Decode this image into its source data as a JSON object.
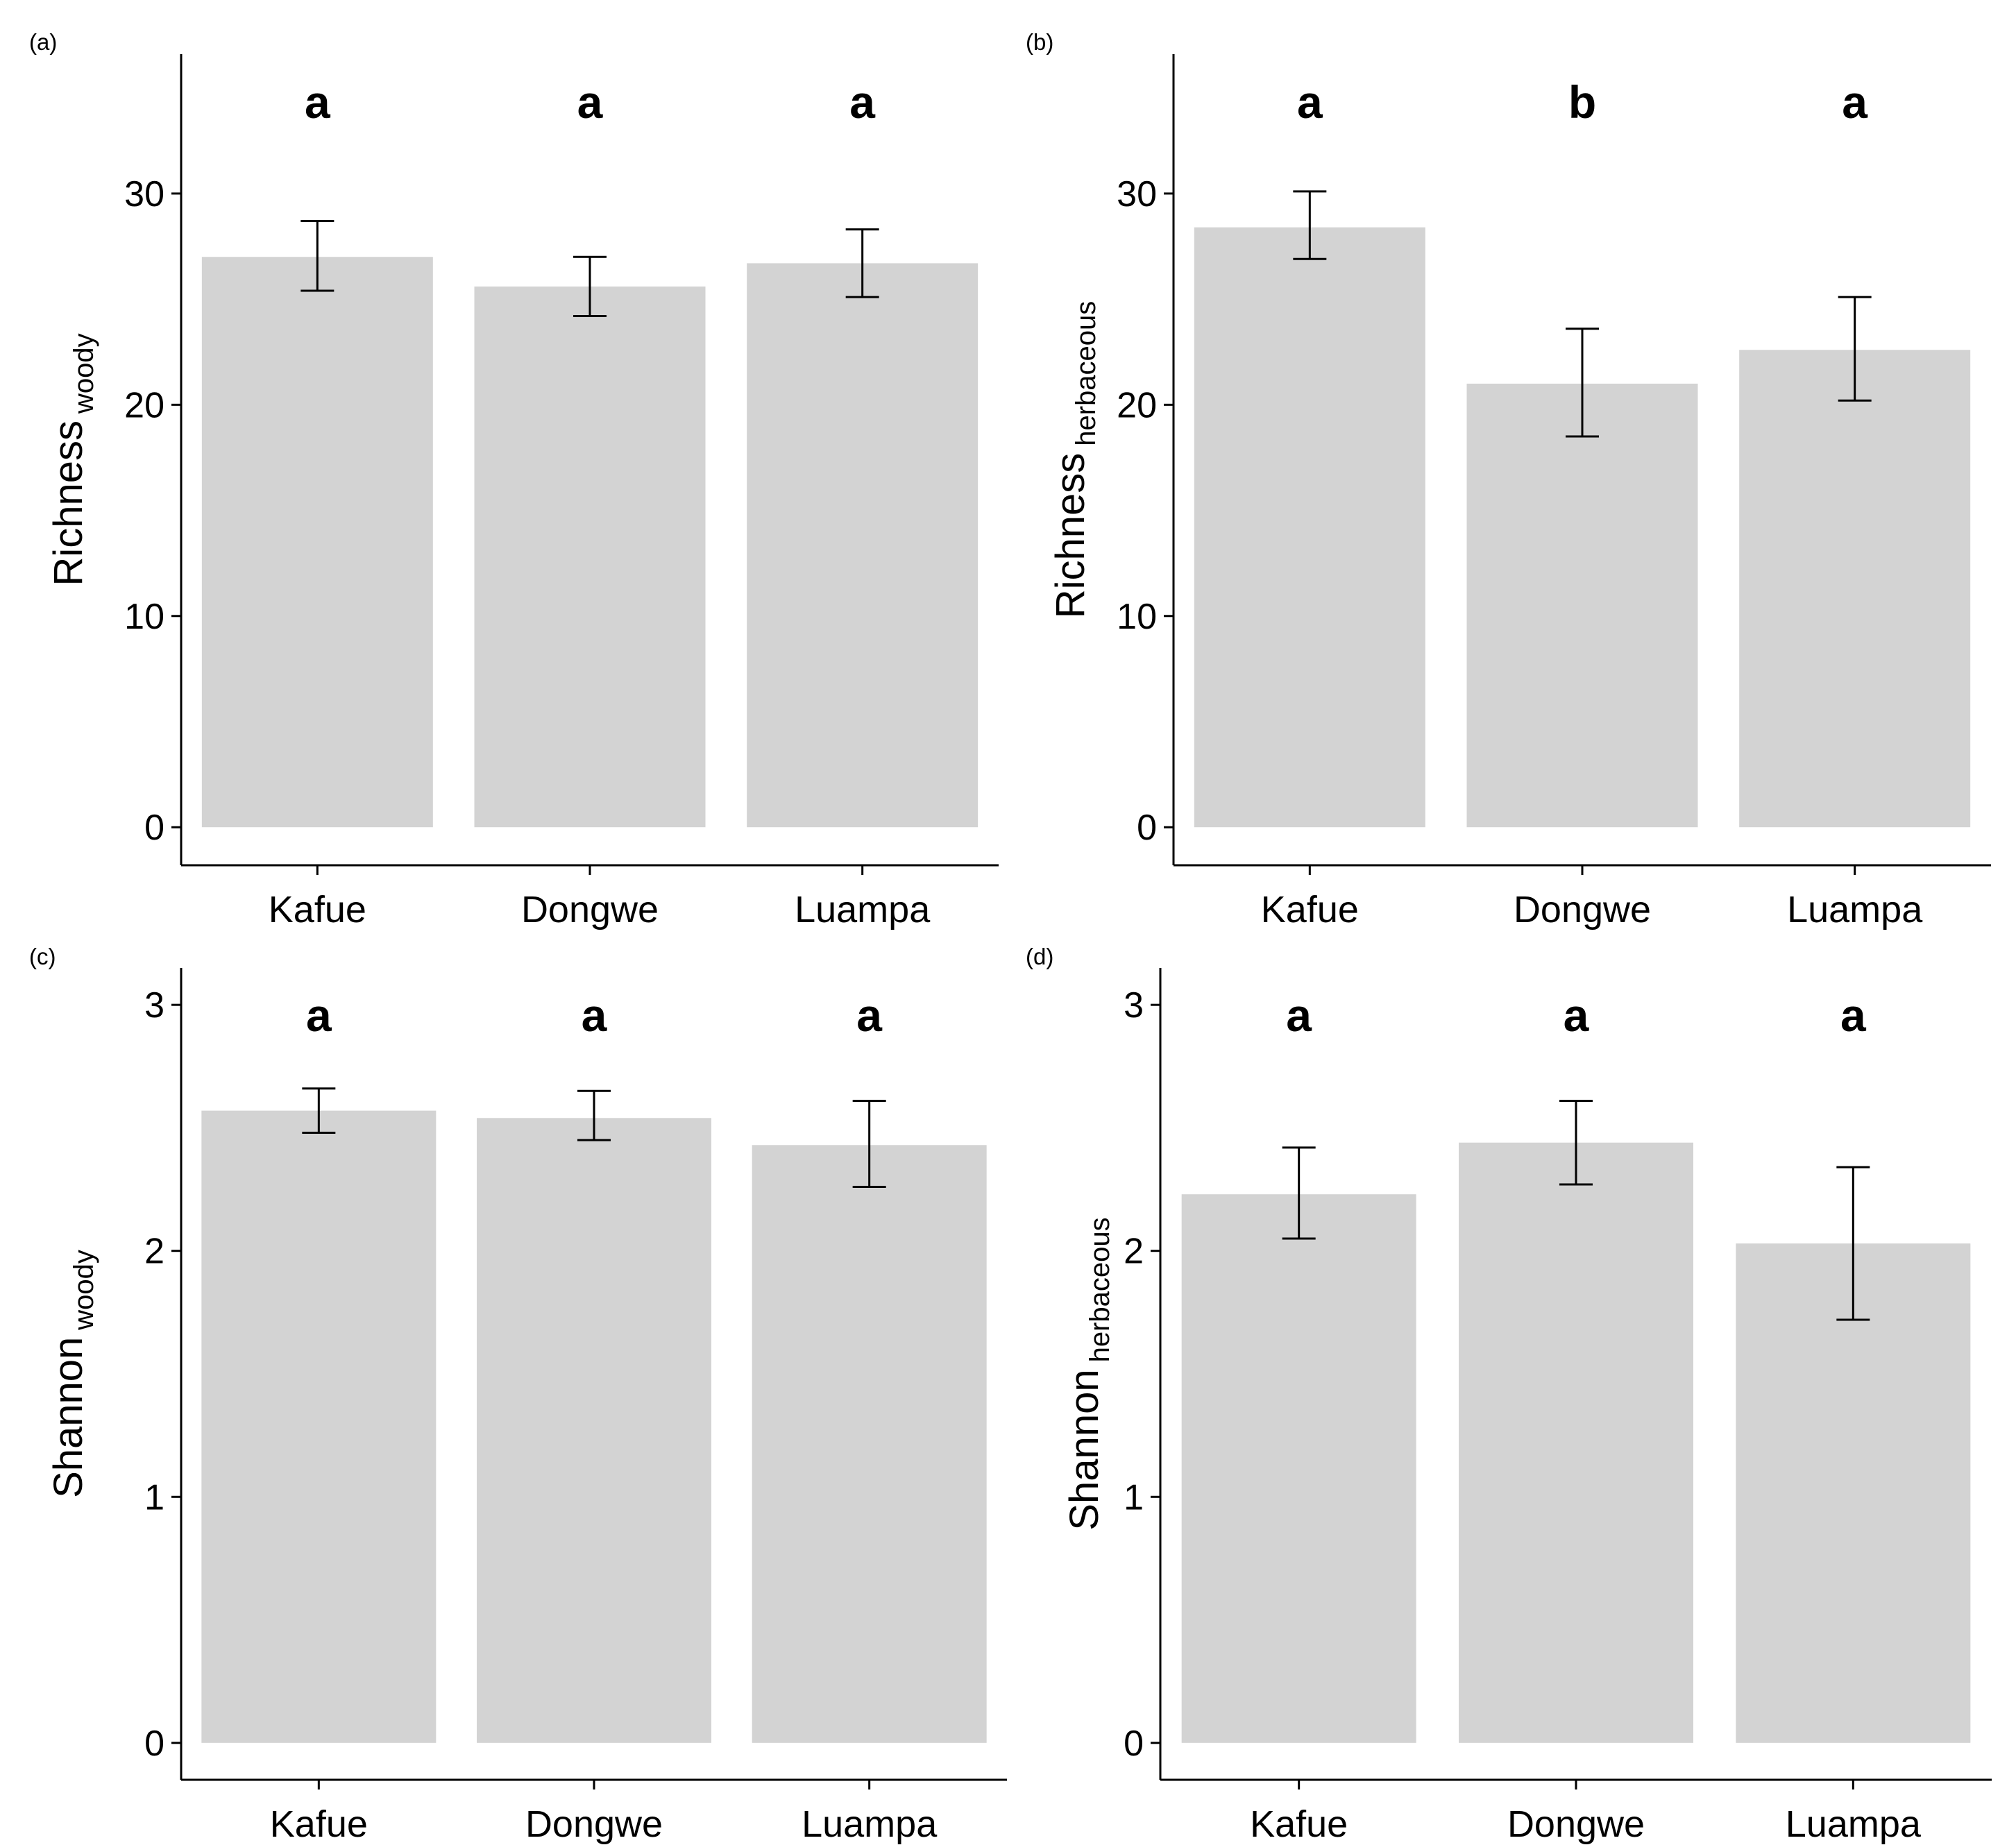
{
  "colors": {
    "bar": "#d3d3d3",
    "axis": "#000000",
    "error_bar": "#000000"
  },
  "chart_data": [
    {
      "type": "bar",
      "panel_label": "(a)",
      "categories": [
        "Kafue",
        "Dongwe",
        "Luampa"
      ],
      "values": [
        27.0,
        25.6,
        26.7
      ],
      "error_low": [
        25.4,
        24.2,
        25.1
      ],
      "error_high": [
        28.7,
        27.0,
        28.3
      ],
      "significance": [
        "a",
        "a",
        "a"
      ],
      "ylabel_main": "Richness",
      "ylabel_sub": "woody",
      "yticks": [
        "0",
        "10",
        "20",
        "30"
      ],
      "ylim": [
        -1.8,
        36.6
      ],
      "grid": false
    },
    {
      "type": "bar",
      "panel_label": "(b)",
      "categories": [
        "Kafue",
        "Dongwe",
        "Luampa"
      ],
      "values": [
        28.4,
        21.0,
        22.6
      ],
      "error_low": [
        26.9,
        18.5,
        20.2
      ],
      "error_high": [
        30.1,
        23.6,
        25.1
      ],
      "significance": [
        "a",
        "b",
        "a"
      ],
      "ylabel_main": "Richness",
      "ylabel_sub": "herbaceous",
      "yticks": [
        "0",
        "10",
        "20",
        "30"
      ],
      "ylim": [
        -1.8,
        36.6
      ],
      "grid": false
    },
    {
      "type": "bar",
      "panel_label": "(c)",
      "categories": [
        "Kafue",
        "Dongwe",
        "Luampa"
      ],
      "values": [
        2.57,
        2.54,
        2.43
      ],
      "error_low": [
        2.48,
        2.45,
        2.26
      ],
      "error_high": [
        2.66,
        2.65,
        2.61
      ],
      "significance": [
        "a",
        "a",
        "a"
      ],
      "ylabel_main": "Shannon",
      "ylabel_sub": "woody",
      "yticks": [
        "0",
        "1",
        "2",
        "3"
      ],
      "ylim": [
        -0.15,
        3.15
      ],
      "grid": false
    },
    {
      "type": "bar",
      "panel_label": "(d)",
      "categories": [
        "Kafue",
        "Dongwe",
        "Luampa"
      ],
      "values": [
        2.23,
        2.44,
        2.03
      ],
      "error_low": [
        2.05,
        2.27,
        1.72
      ],
      "error_high": [
        2.42,
        2.61,
        2.34
      ],
      "significance": [
        "a",
        "a",
        "a"
      ],
      "ylabel_main": "Shannon",
      "ylabel_sub": "herbaceous",
      "yticks": [
        "0",
        "1",
        "2",
        "3"
      ],
      "ylim": [
        -0.15,
        3.15
      ],
      "grid": false
    }
  ]
}
